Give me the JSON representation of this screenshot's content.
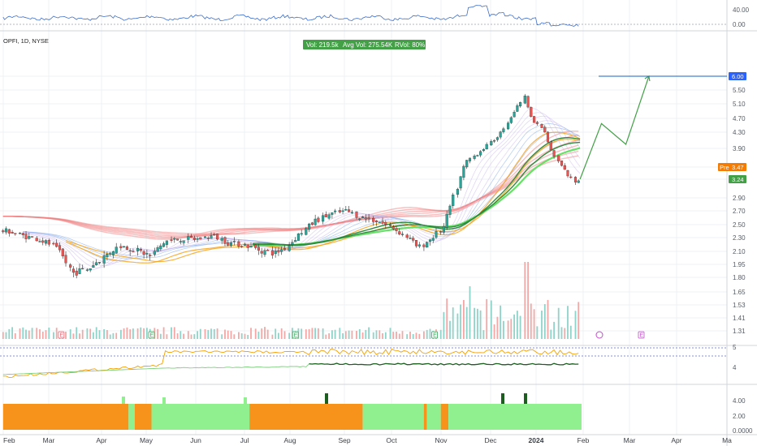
{
  "header": {
    "symbol_label": "OPFI, 1D, NYSE",
    "stats": {
      "vol": "Vol: 219.5k",
      "avg_vol": "Avg Vol: 275.54K",
      "rvol": "RVol: 80%"
    }
  },
  "colors": {
    "up": "#26a69a",
    "down": "#ef5350",
    "bg": "#ffffff",
    "grid": "#eef0f3",
    "projection": "#43a047",
    "target_line": "#1565c0",
    "target_badge": "#2962ff",
    "pre_badge": "#f57c00",
    "last_badge": "#43a047",
    "zone_orange": "#f7931a",
    "zone_green": "#90f090",
    "volume_up": "#8fd3c9",
    "volume_down": "#f4a8a6"
  },
  "chart_data": {
    "type": "candlestick",
    "main_y_ticks": [
      "6.00",
      "5.50",
      "5.10",
      "4.70",
      "4.30",
      "3.90",
      "3.47",
      "3.24",
      "2.90",
      "2.70",
      "2.50",
      "2.30",
      "2.10",
      "1.95",
      "1.80",
      "1.65",
      "1.53",
      "1.41",
      "1.31"
    ],
    "top_y_ticks": [
      "40.00",
      "0.00"
    ],
    "osc_y_ticks": [
      "5",
      "4"
    ],
    "zone_y_ticks": [
      "4.00",
      "2.00",
      "0.0000"
    ],
    "x_ticks": [
      "Feb",
      "Mar",
      "Apr",
      "May",
      "Jun",
      "Jul",
      "Aug",
      "Sep",
      "Oct",
      "Nov",
      "Dec",
      "2024",
      "Feb",
      "Mar",
      "Apr",
      "Ma"
    ],
    "price_path": [
      [
        "2023-02-01",
        2.4
      ],
      [
        "2023-02-10",
        2.33
      ],
      [
        "2023-02-20",
        2.28
      ],
      [
        "2023-03-01",
        2.2
      ],
      [
        "2023-03-08",
        2.05
      ],
      [
        "2023-03-15",
        1.85
      ],
      [
        "2023-03-25",
        1.9
      ],
      [
        "2023-04-05",
        2.05
      ],
      [
        "2023-04-15",
        2.18
      ],
      [
        "2023-04-25",
        2.12
      ],
      [
        "2023-05-05",
        2.05
      ],
      [
        "2023-05-15",
        2.25
      ],
      [
        "2023-05-25",
        2.28
      ],
      [
        "2023-06-05",
        2.28
      ],
      [
        "2023-06-15",
        2.33
      ],
      [
        "2023-06-25",
        2.22
      ],
      [
        "2023-07-05",
        2.2
      ],
      [
        "2023-07-15",
        2.12
      ],
      [
        "2023-07-25",
        2.08
      ],
      [
        "2023-08-01",
        2.15
      ],
      [
        "2023-08-10",
        2.35
      ],
      [
        "2023-08-20",
        2.55
      ],
      [
        "2023-08-30",
        2.65
      ],
      [
        "2023-09-10",
        2.7
      ],
      [
        "2023-09-20",
        2.6
      ],
      [
        "2023-10-01",
        2.55
      ],
      [
        "2023-10-10",
        2.45
      ],
      [
        "2023-10-20",
        2.3
      ],
      [
        "2023-10-27",
        2.15
      ],
      [
        "2023-11-05",
        2.3
      ],
      [
        "2023-11-12",
        2.45
      ],
      [
        "2023-11-20",
        3.0
      ],
      [
        "2023-11-27",
        3.6
      ],
      [
        "2023-12-05",
        3.8
      ],
      [
        "2023-12-12",
        4.0
      ],
      [
        "2023-12-20",
        4.3
      ],
      [
        "2023-12-27",
        4.8
      ],
      [
        "2024-01-04",
        5.3
      ],
      [
        "2024-01-10",
        4.6
      ],
      [
        "2024-01-16",
        4.4
      ],
      [
        "2024-01-22",
        3.8
      ],
      [
        "2024-01-28",
        3.5
      ],
      [
        "2024-02-02",
        3.3
      ],
      [
        "2024-02-06",
        3.2
      ],
      [
        "2024-02-09",
        3.24
      ]
    ],
    "projection_path": [
      [
        "2024-02-09",
        3.24
      ],
      [
        "2024-02-23",
        4.55
      ],
      [
        "2024-03-10",
        4.0
      ],
      [
        "2024-03-25",
        6.0
      ]
    ],
    "target_price": "6.00",
    "pre_market_label": "Pre",
    "pre_market_price": "3.47",
    "last_price": "3.24",
    "earnings_label": "E",
    "earnings_dates": [
      "2023-03-07",
      "2023-05-05",
      "2023-08-07",
      "2023-11-06",
      "2024-03-20"
    ],
    "zone_segments": [
      [
        "2023-01-28",
        "orange"
      ],
      [
        "2023-04-20",
        "green"
      ],
      [
        "2023-04-24",
        "orange"
      ],
      [
        "2023-05-05",
        "green"
      ],
      [
        "2023-07-08",
        "orange"
      ],
      [
        "2023-09-20",
        "green"
      ],
      [
        "2023-10-30",
        "orange"
      ],
      [
        "2023-11-01",
        "green"
      ],
      [
        "2023-11-10",
        "orange"
      ],
      [
        "2023-11-15",
        "green"
      ],
      [
        "2024-02-10",
        "end"
      ]
    ],
    "grid": true,
    "legend": "none"
  }
}
